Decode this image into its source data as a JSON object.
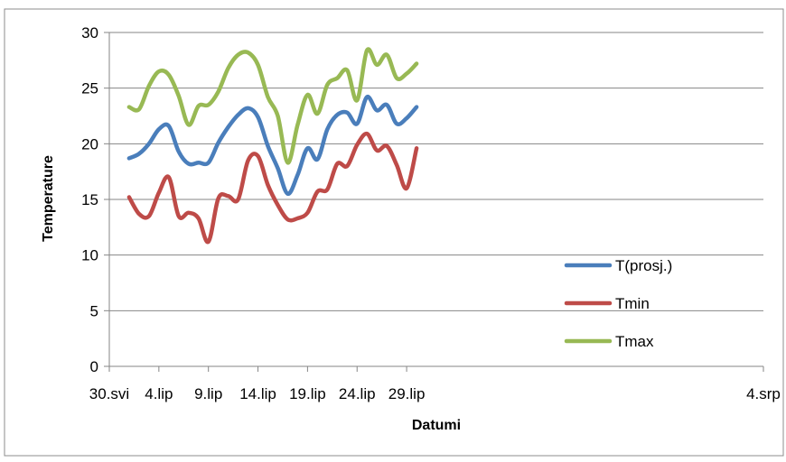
{
  "chart_data": {
    "type": "line",
    "xlabel": "Datumi",
    "ylabel": "Temperature",
    "ylim": [
      0,
      30
    ],
    "yticks": [
      0,
      5,
      10,
      15,
      20,
      25,
      30
    ],
    "xlim": [
      "2014-05-30",
      "2014-08-04"
    ],
    "xticks": [
      {
        "date": "2014-05-30",
        "label": "30.svi"
      },
      {
        "date": "2014-06-04",
        "label": "4.lip"
      },
      {
        "date": "2014-06-09",
        "label": "9.lip"
      },
      {
        "date": "2014-06-14",
        "label": "14.lip"
      },
      {
        "date": "2014-06-19",
        "label": "19.lip"
      },
      {
        "date": "2014-06-24",
        "label": "24.lip"
      },
      {
        "date": "2014-06-29",
        "label": "29.lip"
      },
      {
        "date": "2014-08-04",
        "label": "4.srp"
      }
    ],
    "grid": "horizontal",
    "legend_position": "right",
    "x": [
      "2014-06-01",
      "2014-06-02",
      "2014-06-03",
      "2014-06-04",
      "2014-06-05",
      "2014-06-06",
      "2014-06-07",
      "2014-06-08",
      "2014-06-09",
      "2014-06-10",
      "2014-06-11",
      "2014-06-12",
      "2014-06-13",
      "2014-06-14",
      "2014-06-15",
      "2014-06-16",
      "2014-06-17",
      "2014-06-18",
      "2014-06-19",
      "2014-06-20",
      "2014-06-21",
      "2014-06-22",
      "2014-06-23",
      "2014-06-24",
      "2014-06-25",
      "2014-06-26",
      "2014-06-27",
      "2014-06-28",
      "2014-06-29",
      "2014-06-30"
    ],
    "series": [
      {
        "name": "T(prosj.)",
        "color": "#4a7ebb",
        "values": [
          18.7,
          19.1,
          20.0,
          21.3,
          21.6,
          19.3,
          18.2,
          18.3,
          18.3,
          20.1,
          21.5,
          22.6,
          23.2,
          22.4,
          19.8,
          17.8,
          15.5,
          17.2,
          19.6,
          18.6,
          21.3,
          22.6,
          22.8,
          21.8,
          24.2,
          23.0,
          23.5,
          21.8,
          22.3,
          23.3
        ]
      },
      {
        "name": "Tmin",
        "color": "#be4b48",
        "values": [
          15.2,
          13.7,
          13.5,
          15.6,
          17.0,
          13.5,
          13.8,
          13.3,
          11.2,
          15.1,
          15.3,
          15.0,
          18.5,
          18.9,
          16.3,
          14.5,
          13.2,
          13.3,
          13.8,
          15.7,
          15.9,
          18.2,
          18.0,
          19.9,
          20.9,
          19.4,
          19.8,
          18.1,
          16.0,
          19.6
        ]
      },
      {
        "name": "Tmax",
        "color": "#98b954",
        "values": [
          23.3,
          23.1,
          25.2,
          26.5,
          26.2,
          24.3,
          21.7,
          23.4,
          23.5,
          24.7,
          26.8,
          28.0,
          28.2,
          27.1,
          24.2,
          22.5,
          18.3,
          21.7,
          24.4,
          22.7,
          25.3,
          25.9,
          26.6,
          23.9,
          28.4,
          27.1,
          28.0,
          25.9,
          26.3,
          27.2
        ]
      }
    ]
  }
}
